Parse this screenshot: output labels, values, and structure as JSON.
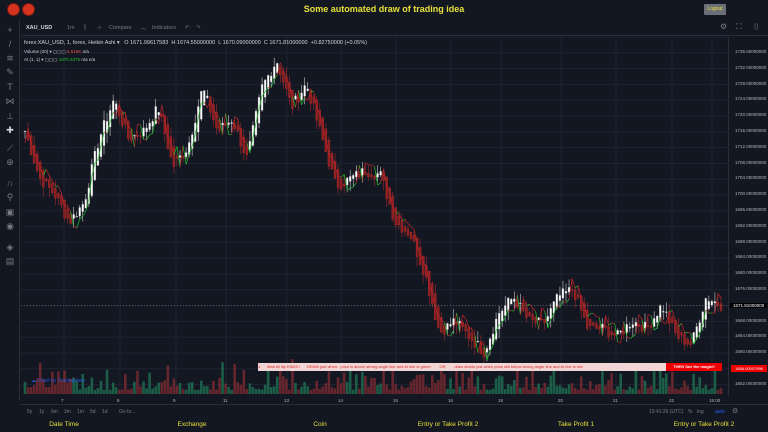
{
  "app": {
    "title": "Some automated draw of trading idea",
    "logout_label": "Logout"
  },
  "toolbar": {
    "symbol": "XAU_USD",
    "interval": "1m",
    "compare": "Compare",
    "indicators": "Indicators"
  },
  "legend": {
    "series": "forex:XAU_USD, 1, forex, Heikin Ashi",
    "open": "O 1671.99617583",
    "high": "H 1674.55000000",
    "low": "L 1670.09000000",
    "close": "C 1671.81000000",
    "change": "+0.82750000 (+0.05%)",
    "volume": "Volume (20)",
    "volume_value": "5.615K",
    "volume_na": "n/a",
    "ai": "AI (1, 1)",
    "ai_value": "1670.3375",
    "ai_na": "n/a  n/a"
  },
  "price_axis": {
    "labels": [
      "1736.00000000",
      "1732.00000000",
      "1728.00000000",
      "1724.00000000",
      "1720.00000000",
      "1716.00000000",
      "1712.00000000",
      "1708.00000000",
      "1704.00000000",
      "1700.00000000",
      "1696.00000000",
      "1692.00000000",
      "1688.00000000",
      "1684.00000000",
      "1680.00000000",
      "1676.00000000",
      "1668.00000000",
      "1664.00000000",
      "1660.00000000",
      "1652.00000000"
    ],
    "current": "1671.81000000",
    "marker": "1656.00007996"
  },
  "time_axis": {
    "labels": [
      "7",
      "8",
      "9",
      "11",
      "13",
      "14",
      "15",
      "16",
      "18",
      "20",
      "21",
      "22",
      "15:00"
    ]
  },
  "banner": {
    "text": "1      Wait till flip ENDS !      DRAW just when:  price is above strong angle line and AI line is green        OR        draw shorts just when price still below strong angle line and AI line is red",
    "magic": "THEN See the magic!!"
  },
  "watermark": "Chart by TradingView",
  "bottom": {
    "ranges": [
      "5y",
      "1y",
      "6m",
      "3m",
      "1m",
      "5d",
      "1d"
    ],
    "goto": "Go to...",
    "clock": "19:41:26 (UTC)",
    "percent": "%",
    "log": "log",
    "auto": "auto"
  },
  "footer": {
    "labels": [
      "Date Time",
      "Exchange",
      "Coin",
      "Entry or Take Profit 2",
      "Take Profit 1",
      "Entry or Take Profit 2"
    ]
  },
  "colors": {
    "up": "#26a69a",
    "down": "#ef5350",
    "ai_line": "#22c02a",
    "accent": "#e8e13a",
    "alert": "#ee0000"
  },
  "chart_data": {
    "type": "candlestick",
    "style": "Heikin Ashi",
    "price_path": [
      1716,
      1704,
      1700,
      1693,
      1698,
      1714,
      1724,
      1714,
      1716,
      1722,
      1707,
      1712,
      1727,
      1716,
      1719,
      1709,
      1727,
      1734,
      1722,
      1728,
      1715,
      1702,
      1704,
      1706,
      1705,
      1693,
      1690,
      1680,
      1665,
      1668,
      1664,
      1660,
      1670,
      1674,
      1668,
      1667,
      1674,
      1676,
      1666,
      1666,
      1664,
      1668,
      1666,
      1672,
      1664,
      1662,
      1674,
      1672
    ]
  }
}
